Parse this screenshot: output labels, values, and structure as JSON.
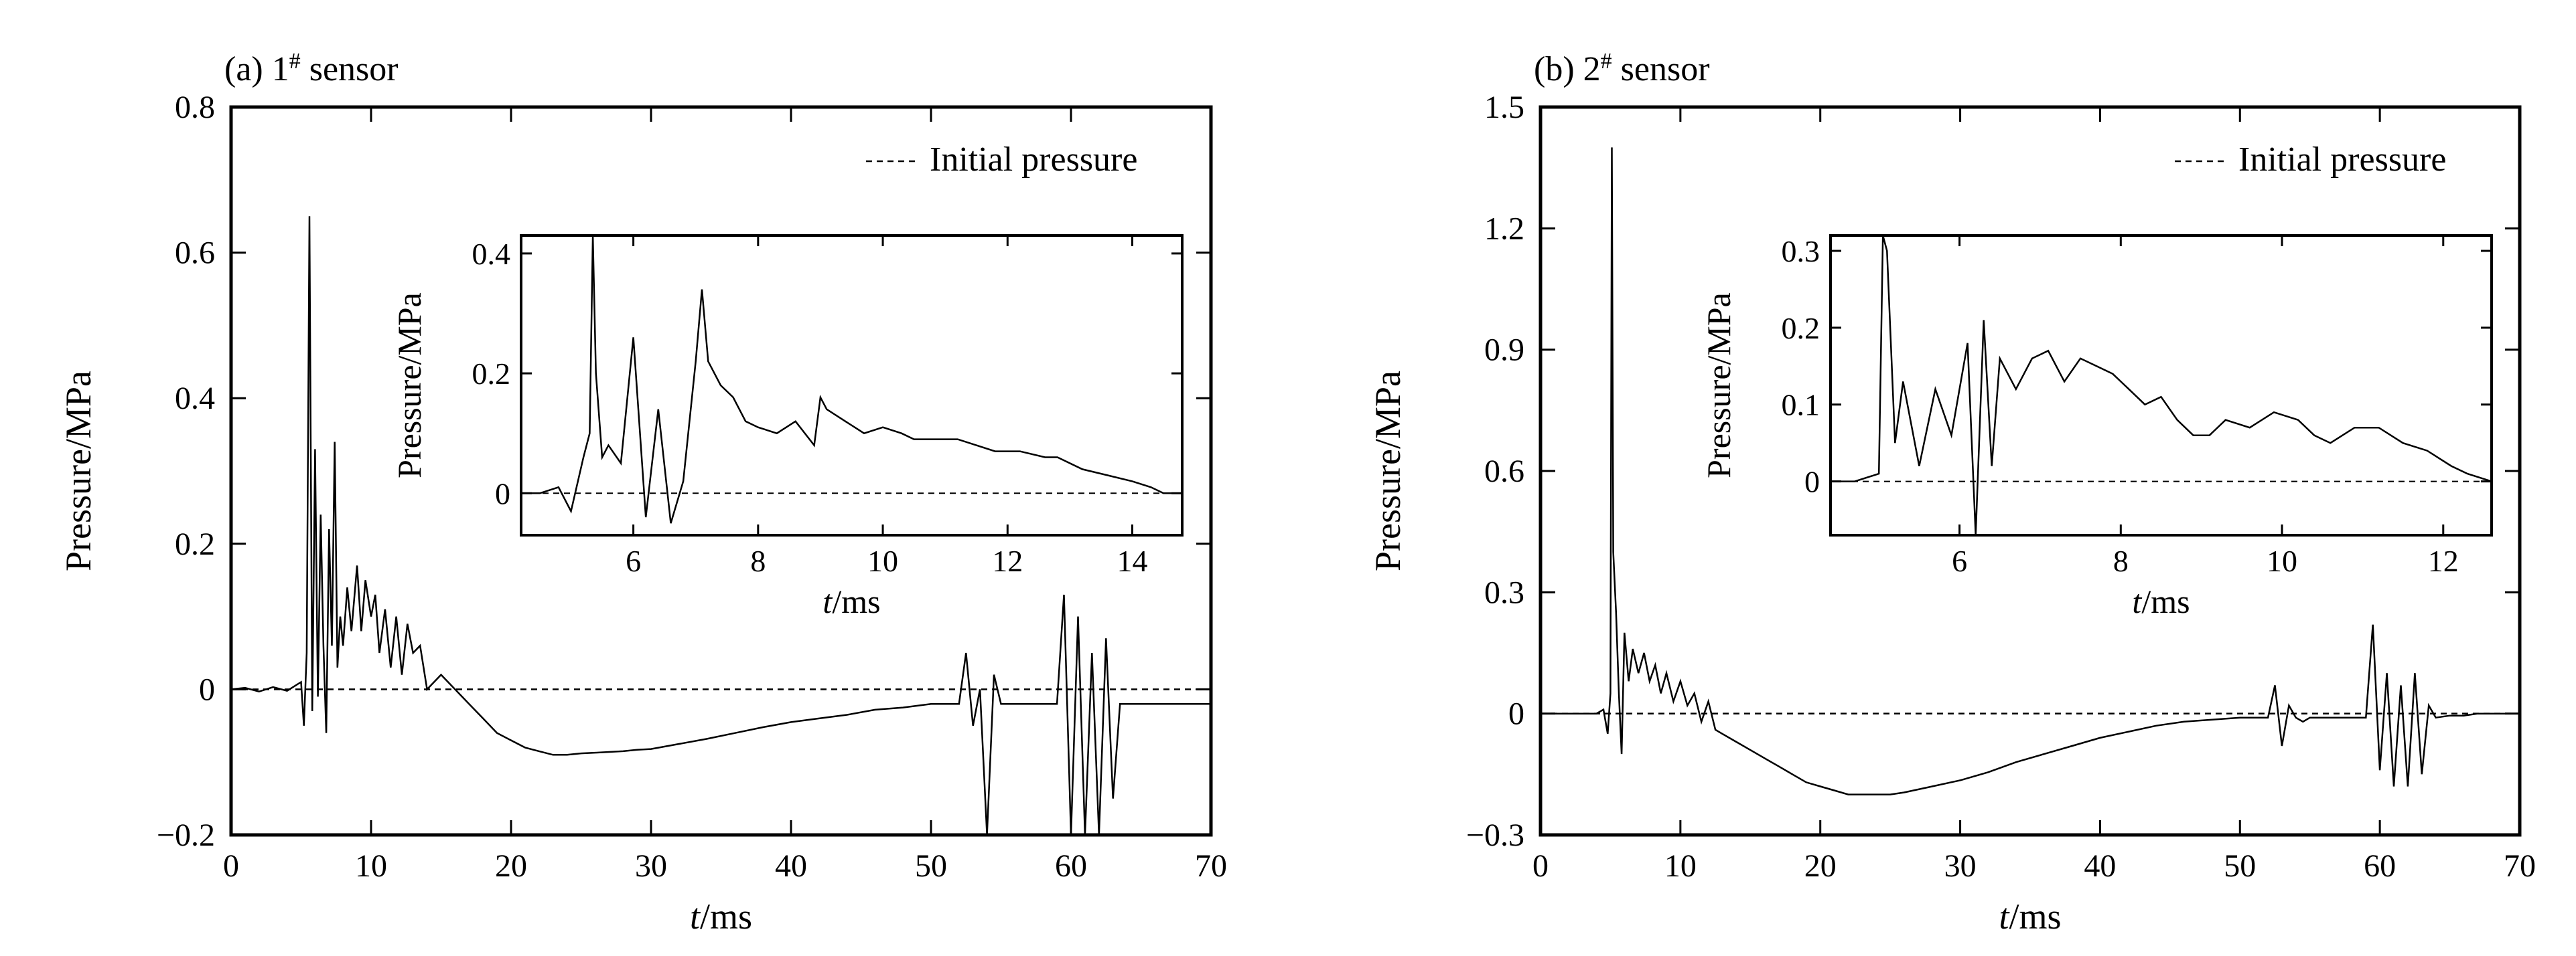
{
  "chart_data": [
    {
      "type": "line",
      "panel_label": "(a) 1",
      "panel_label_sup": "#",
      "panel_label_tail": " sensor",
      "xlabel_italic": "t",
      "xlabel_unit": "/ms",
      "ylabel": "Pressure/MPa",
      "xlim": [
        0,
        70
      ],
      "ylim": [
        -0.2,
        0.8
      ],
      "xticks": [
        0,
        10,
        20,
        30,
        40,
        50,
        60,
        70
      ],
      "yticks": [
        -0.2,
        0,
        0.2,
        0.4,
        0.6,
        0.8
      ],
      "ytick_labels": [
        "−0.2",
        "0",
        "0.2",
        "0.4",
        "0.6",
        "0.8"
      ],
      "legend": {
        "label": "Initial pressure",
        "placement": "top-right",
        "line_style": "dashed"
      },
      "reference_line": {
        "y": 0,
        "style": "dashed"
      },
      "series": [
        {
          "x": [
            0,
            1,
            2,
            3,
            4,
            5,
            5.2,
            5.4,
            5.6,
            5.8,
            6,
            6.2,
            6.4,
            6.6,
            6.8,
            7,
            7.2,
            7.4,
            7.6,
            7.8,
            8,
            8.3,
            8.6,
            9,
            9.3,
            9.6,
            10,
            10.3,
            10.6,
            11,
            11.4,
            11.8,
            12.2,
            12.6,
            13,
            13.5,
            14,
            15,
            16,
            17,
            18,
            19,
            20,
            21,
            22,
            23,
            24,
            25,
            26,
            27,
            28,
            29,
            30,
            32,
            34,
            36,
            38,
            40,
            42,
            44,
            46,
            48,
            50,
            51,
            52,
            52.5,
            53,
            53.5,
            54,
            54.5,
            55,
            56,
            57,
            58,
            59,
            59.5,
            60,
            60.5,
            61,
            61.5,
            62,
            62.5,
            63,
            63.5,
            64,
            65,
            66,
            67,
            68,
            69,
            70
          ],
          "y": [
            0,
            0.002,
            -0.003,
            0.003,
            -0.002,
            0.01,
            -0.05,
            0.05,
            0.65,
            -0.03,
            0.33,
            -0.01,
            0.24,
            0.06,
            -0.06,
            0.22,
            0.06,
            0.34,
            0.03,
            0.1,
            0.06,
            0.14,
            0.08,
            0.17,
            0.08,
            0.15,
            0.1,
            0.13,
            0.05,
            0.11,
            0.03,
            0.1,
            0.02,
            0.09,
            0.05,
            0.06,
            0.0,
            0.02,
            0.0,
            -0.02,
            -0.04,
            -0.06,
            -0.07,
            -0.08,
            -0.085,
            -0.09,
            -0.09,
            -0.088,
            -0.087,
            -0.086,
            -0.085,
            -0.083,
            -0.082,
            -0.075,
            -0.068,
            -0.06,
            -0.052,
            -0.045,
            -0.04,
            -0.035,
            -0.028,
            -0.025,
            -0.02,
            -0.02,
            -0.02,
            0.05,
            -0.05,
            0.0,
            -0.2,
            0.02,
            -0.02,
            -0.02,
            -0.02,
            -0.02,
            -0.02,
            0.13,
            -0.2,
            0.1,
            -0.2,
            0.05,
            -0.2,
            0.07,
            -0.15,
            -0.02,
            -0.02,
            -0.02,
            -0.02,
            -0.02,
            -0.02,
            -0.02,
            -0.02
          ]
        }
      ],
      "inset": {
        "xlabel_italic": "t",
        "xlabel_unit": "/ms",
        "ylabel": "Pressure/MPa",
        "xlim": [
          4.2,
          14.8
        ],
        "ylim": [
          -0.07,
          0.43
        ],
        "xticks": [
          6,
          8,
          10,
          12,
          14
        ],
        "yticks": [
          0,
          0.2,
          0.4
        ],
        "ytick_labels": [
          "0",
          "0.2",
          "0.4"
        ],
        "reference_line": {
          "y": 0,
          "style": "dashed"
        },
        "series": [
          {
            "x": [
              4.2,
              4.5,
              4.8,
              5.0,
              5.2,
              5.3,
              5.35,
              5.4,
              5.5,
              5.6,
              5.8,
              6.0,
              6.2,
              6.4,
              6.6,
              6.8,
              7.0,
              7.1,
              7.2,
              7.4,
              7.6,
              7.8,
              8.0,
              8.3,
              8.6,
              8.9,
              9.0,
              9.1,
              9.4,
              9.7,
              10.0,
              10.3,
              10.5,
              10.8,
              11.2,
              11.5,
              11.8,
              12.2,
              12.6,
              12.8,
              13.2,
              13.6,
              14.0,
              14.3,
              14.5,
              14.8
            ],
            "y": [
              0.0,
              0.0,
              0.01,
              -0.03,
              0.06,
              0.1,
              0.43,
              0.2,
              0.06,
              0.08,
              0.05,
              0.26,
              -0.04,
              0.14,
              -0.05,
              0.02,
              0.22,
              0.34,
              0.22,
              0.18,
              0.16,
              0.12,
              0.11,
              0.1,
              0.12,
              0.08,
              0.16,
              0.14,
              0.12,
              0.1,
              0.11,
              0.1,
              0.09,
              0.09,
              0.09,
              0.08,
              0.07,
              0.07,
              0.06,
              0.06,
              0.04,
              0.03,
              0.02,
              0.01,
              0.0,
              0.0
            ]
          }
        ]
      }
    },
    {
      "type": "line",
      "panel_label": "(b) 2",
      "panel_label_sup": "#",
      "panel_label_tail": " sensor",
      "xlabel_italic": "t",
      "xlabel_unit": "/ms",
      "ylabel": "Pressure/MPa",
      "xlim": [
        0,
        70
      ],
      "ylim": [
        -0.3,
        1.5
      ],
      "xticks": [
        0,
        10,
        20,
        30,
        40,
        50,
        60,
        70
      ],
      "yticks": [
        -0.3,
        0,
        0.3,
        0.6,
        0.9,
        1.2,
        1.5
      ],
      "ytick_labels": [
        "−0.3",
        "0",
        "0.3",
        "0.6",
        "0.9",
        "1.2",
        "1.5"
      ],
      "legend": {
        "label": "Initial pressure",
        "placement": "top-right",
        "line_style": "dashed"
      },
      "reference_line": {
        "y": 0,
        "style": "dashed"
      },
      "series": [
        {
          "x": [
            0,
            1,
            2,
            3,
            4,
            4.5,
            4.8,
            5.0,
            5.1,
            5.2,
            5.4,
            5.6,
            5.8,
            6.0,
            6.3,
            6.6,
            7.0,
            7.4,
            7.8,
            8.2,
            8.6,
            9.0,
            9.5,
            10,
            10.5,
            11,
            11.5,
            12,
            12.5,
            13,
            14,
            15,
            16,
            17,
            18,
            19,
            20,
            21,
            22,
            23,
            24,
            25,
            26,
            28,
            30,
            32,
            34,
            36,
            38,
            40,
            42,
            44,
            46,
            48,
            50,
            51,
            52,
            52.5,
            53,
            53.5,
            54,
            54.5,
            55,
            56,
            57,
            58,
            59,
            59.5,
            60,
            60.5,
            61,
            61.5,
            62,
            62.5,
            63,
            63.5,
            64,
            65,
            66,
            67,
            68,
            69,
            70
          ],
          "y": [
            0,
            0,
            0,
            0,
            0,
            0.01,
            -0.05,
            0.05,
            1.4,
            0.4,
            0.25,
            0.05,
            -0.1,
            0.2,
            0.08,
            0.16,
            0.1,
            0.15,
            0.08,
            0.12,
            0.05,
            0.1,
            0.03,
            0.08,
            0.02,
            0.05,
            -0.02,
            0.03,
            -0.04,
            -0.05,
            -0.07,
            -0.09,
            -0.11,
            -0.13,
            -0.15,
            -0.17,
            -0.18,
            -0.19,
            -0.2,
            -0.2,
            -0.2,
            -0.2,
            -0.195,
            -0.18,
            -0.165,
            -0.145,
            -0.12,
            -0.1,
            -0.08,
            -0.06,
            -0.045,
            -0.03,
            -0.02,
            -0.015,
            -0.01,
            -0.01,
            -0.01,
            0.07,
            -0.08,
            0.02,
            -0.01,
            -0.02,
            -0.01,
            -0.01,
            -0.01,
            -0.01,
            -0.01,
            0.22,
            -0.14,
            0.1,
            -0.18,
            0.07,
            -0.18,
            0.1,
            -0.15,
            0.02,
            -0.01,
            -0.005,
            -0.005,
            0.0,
            0.0,
            0.0,
            0.0
          ]
        }
      ],
      "inset": {
        "xlabel_italic": "t",
        "xlabel_unit": "/ms",
        "ylabel": "Pressure/MPa",
        "xlim": [
          4.4,
          12.6
        ],
        "ylim": [
          -0.07,
          0.32
        ],
        "xticks": [
          6,
          8,
          10,
          12
        ],
        "yticks": [
          0,
          0.1,
          0.2,
          0.3
        ],
        "ytick_labels": [
          "0",
          "0.1",
          "0.2",
          "0.3"
        ],
        "reference_line": {
          "y": 0,
          "style": "dashed"
        },
        "series": [
          {
            "x": [
              4.4,
              4.7,
              5.0,
              5.05,
              5.1,
              5.2,
              5.3,
              5.5,
              5.7,
              5.9,
              6.1,
              6.2,
              6.3,
              6.4,
              6.5,
              6.7,
              6.9,
              7.1,
              7.3,
              7.5,
              7.7,
              7.9,
              8.1,
              8.3,
              8.5,
              8.7,
              8.9,
              9.1,
              9.3,
              9.6,
              9.9,
              10.2,
              10.4,
              10.6,
              10.9,
              11.2,
              11.5,
              11.8,
              12.1,
              12.3,
              12.6
            ],
            "y": [
              0.0,
              0.0,
              0.01,
              0.32,
              0.3,
              0.05,
              0.13,
              0.02,
              0.12,
              0.06,
              0.18,
              -0.07,
              0.21,
              0.02,
              0.16,
              0.12,
              0.16,
              0.17,
              0.13,
              0.16,
              0.15,
              0.14,
              0.12,
              0.1,
              0.11,
              0.08,
              0.06,
              0.06,
              0.08,
              0.07,
              0.09,
              0.08,
              0.06,
              0.05,
              0.07,
              0.07,
              0.05,
              0.04,
              0.02,
              0.01,
              0.0
            ]
          }
        ]
      }
    }
  ]
}
